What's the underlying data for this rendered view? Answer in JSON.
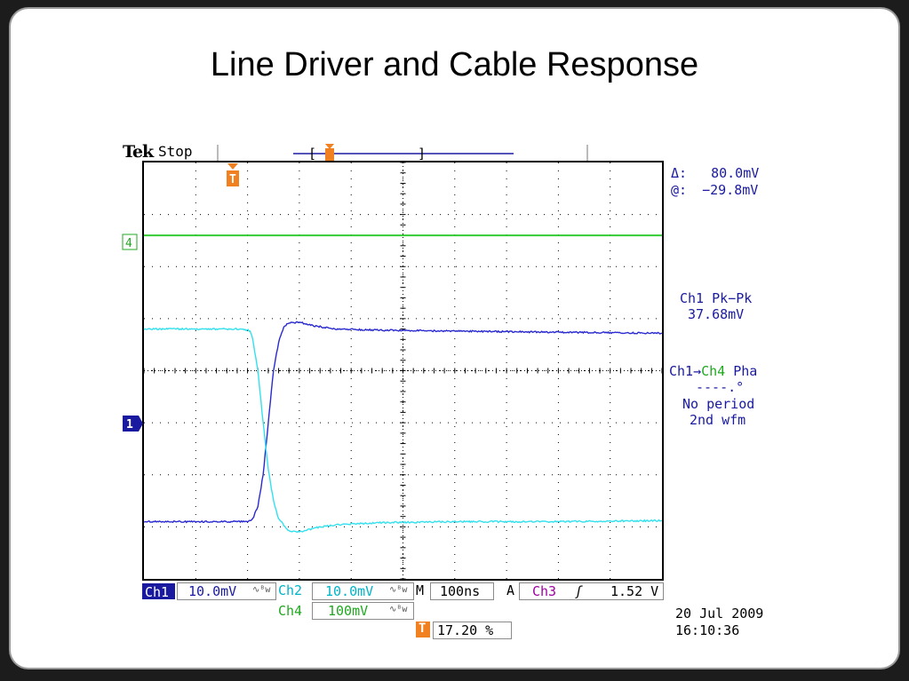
{
  "slide_title": "Line Driver and Cable Response",
  "scope": {
    "brand": "Tek",
    "status": "Stop",
    "trigger_marker": "T",
    "ch4_marker": "4",
    "ch1_marker": "1"
  },
  "measurements": {
    "cursor_delta_label": "Δ:",
    "cursor_delta_value": "80.0mV",
    "cursor_at_label": "@:",
    "cursor_at_value": "−29.8mV",
    "pkpk_label": "Ch1 Pk−Pk",
    "pkpk_value": "37.68mV",
    "phase_from": "Ch1",
    "phase_arrow": "→",
    "phase_to": "Ch4",
    "phase_suffix": " Pha",
    "phase_value": "----.°",
    "phase_note1": "No period",
    "phase_note2": "2nd wfm"
  },
  "bottom_bar": {
    "ch1_label": "Ch1",
    "ch1_scale": "10.0mV",
    "ch2_label": "Ch2",
    "ch2_scale": "10.0mV",
    "ch4_label": "Ch4",
    "ch4_scale": "100mV",
    "bw_symbol": "∿ᴮw",
    "time_label": "M",
    "time_scale": "100ns",
    "trig_mode": "A",
    "trig_source": "Ch3",
    "trig_slope": "ʃ",
    "trig_level": "1.52 V",
    "trig_pos_marker": "T",
    "trig_pos": "17.20 %",
    "date": "20 Jul   2009",
    "time": "16:10:36"
  },
  "colors": {
    "ch1": "#2a2ad0",
    "ch2": "#33e0ee",
    "ch4": "#33cc33",
    "grid": "#000000",
    "accent": "#f08020"
  },
  "chart_data": {
    "type": "line",
    "x_unit": "ns",
    "x_divisions": 10,
    "y_divisions": 8,
    "x_range": [
      0,
      1000
    ],
    "series": [
      {
        "name": "Ch1",
        "scale": "10.0mV/div",
        "x": [
          0,
          200,
          210,
          220,
          230,
          240,
          250,
          260,
          270,
          280,
          300,
          330,
          370,
          450,
          600,
          800,
          1000
        ],
        "y": [
          -2.9,
          -2.9,
          -2.85,
          -2.6,
          -2.0,
          -1.0,
          0.0,
          0.55,
          0.85,
          0.92,
          0.93,
          0.86,
          0.8,
          0.78,
          0.76,
          0.74,
          0.72
        ]
      },
      {
        "name": "Ch2",
        "scale": "10.0mV/div",
        "x": [
          0,
          180,
          205,
          210,
          220,
          230,
          240,
          250,
          260,
          280,
          300,
          330,
          370,
          450,
          600,
          800,
          1000
        ],
        "y": [
          0.8,
          0.8,
          0.77,
          0.6,
          0.0,
          -1.0,
          -1.9,
          -2.5,
          -2.85,
          -3.08,
          -3.1,
          -3.02,
          -2.96,
          -2.92,
          -2.9,
          -2.9,
          -2.88
        ]
      },
      {
        "name": "Ch4",
        "scale": "100mV/div",
        "x": [
          0,
          1000
        ],
        "y": [
          2.6,
          2.6
        ]
      }
    ]
  }
}
